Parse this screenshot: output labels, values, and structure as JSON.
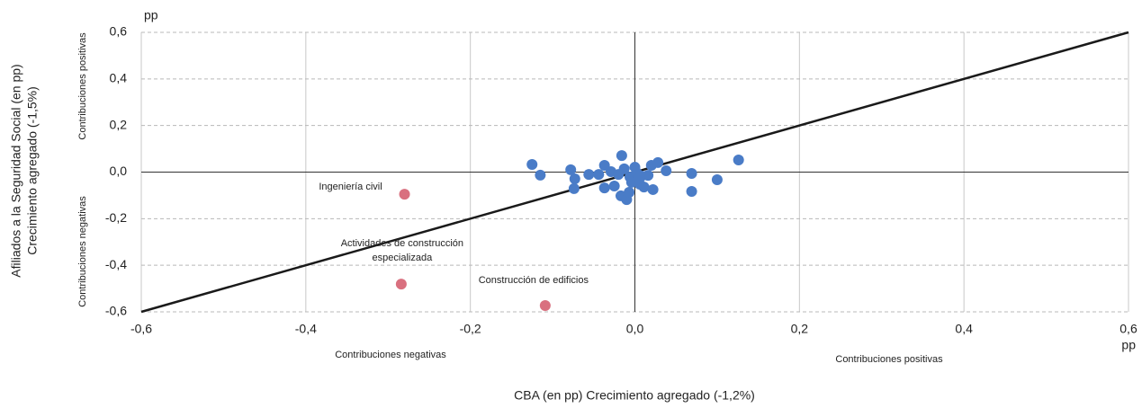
{
  "chart_data": {
    "type": "scatter",
    "x_label": "CBA (en pp) Crecimiento agregado (-1,2%)",
    "y_label": [
      "Afiliados a la Seguridad Social (en pp)",
      "Crecimiento agregado (-1,5%)"
    ],
    "x_unit": "pp",
    "y_unit": "pp",
    "quadrant_notes": {
      "y_positive": "Contribuciones positivas",
      "y_negative": "Contribuciones negativas",
      "x_negative": "Contribuciones negativas",
      "x_positive": "Contribuciones positivas"
    },
    "xlim": [
      -0.6,
      0.6
    ],
    "ylim": [
      -0.6,
      0.6
    ],
    "xticks": [
      {
        "value": -0.6,
        "label": "-0,6"
      },
      {
        "value": -0.4,
        "label": "-0,4"
      },
      {
        "value": -0.2,
        "label": "-0,2"
      },
      {
        "value": 0,
        "label": "0,0"
      },
      {
        "value": 0.2,
        "label": "0,2"
      },
      {
        "value": 0.4,
        "label": "0,4"
      },
      {
        "value": 0.6,
        "label": "0,6"
      }
    ],
    "yticks": [
      {
        "value": -0.6,
        "label": "-0,6"
      },
      {
        "value": -0.4,
        "label": "-0,4"
      },
      {
        "value": -0.2,
        "label": "-0,2"
      },
      {
        "value": 0,
        "label": "0,0"
      },
      {
        "value": 0.2,
        "label": "0,2"
      },
      {
        "value": 0.4,
        "label": "0,4"
      },
      {
        "value": 0.6,
        "label": "0,6"
      }
    ],
    "grid": true,
    "reference_line": {
      "color": "#1a1a1a",
      "x": [
        -0.6,
        0.6
      ],
      "y": [
        -0.6,
        0.6
      ]
    },
    "series": [
      {
        "color": "#4a7cc7",
        "x": [
          -0.125,
          -0.115,
          -0.078,
          -0.073,
          -0.074,
          -0.056,
          -0.044,
          -0.037,
          -0.037,
          -0.029,
          -0.025,
          -0.02,
          -0.016,
          -0.017,
          -0.013,
          -0.01,
          -0.007,
          -0.006,
          -0.004,
          0,
          0.002,
          0.004,
          0.006,
          0.008,
          0.011,
          0.016,
          0.02,
          0.022,
          0.028,
          0.038,
          0.069,
          0.069,
          0.126,
          0.1
        ],
        "y": [
          0.033,
          -0.013,
          0.01,
          -0.029,
          -0.071,
          -0.01,
          -0.01,
          0.029,
          -0.068,
          0.002,
          -0.06,
          -0.01,
          0.071,
          -0.102,
          0.014,
          -0.118,
          -0.087,
          -0.021,
          -0.044,
          0.021,
          -0.002,
          -0.029,
          -0.052,
          -0.017,
          -0.064,
          -0.014,
          0.029,
          -0.075,
          0.041,
          0.006,
          -0.006,
          -0.083,
          0.052,
          -0.033
        ]
      },
      {
        "color": "#d9707f",
        "x": [
          -0.28,
          -0.284,
          -0.109
        ],
        "y": [
          -0.095,
          -0.481,
          -0.573
        ],
        "labels": [
          [
            "Ingeniería civil"
          ],
          [
            "Actividades de construcción",
            "especializada"
          ],
          [
            "Construcción de edificios"
          ]
        ]
      }
    ]
  }
}
